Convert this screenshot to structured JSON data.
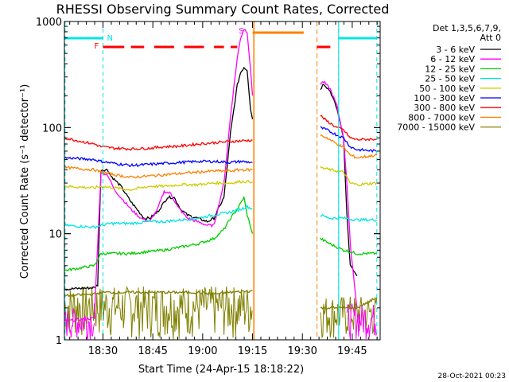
{
  "chart_data": {
    "type": "line",
    "title": "RHESSI Observing Summary Count Rates, Corrected",
    "xlabel": "Start Time (24-Apr-15 18:18:22)",
    "ylabel": "Corrected Count Rate (s⁻¹ detector⁻¹)",
    "ylog": true,
    "ylim": [
      1,
      1000
    ],
    "xlim_minutes": [
      0,
      95
    ],
    "x_ticks": [
      {
        "label": "18:30",
        "min": 11.6
      },
      {
        "label": "18:45",
        "min": 26.6
      },
      {
        "label": "19:00",
        "min": 41.6
      },
      {
        "label": "19:15",
        "min": 56.6
      },
      {
        "label": "19:30",
        "min": 71.6
      },
      {
        "label": "19:45",
        "min": 86.6
      }
    ],
    "y_ticks": [
      {
        "label": "1",
        "value": 1
      },
      {
        "label": "10",
        "value": 10
      },
      {
        "label": "100",
        "value": 100
      },
      {
        "label": "1000",
        "value": 1000
      }
    ],
    "legend_header": [
      "Det 1,3,5,6,7,9,",
      "Att 0"
    ],
    "legend_placement": "right",
    "footer_timestamp": "28-Oct-2021 00:23",
    "gap_minutes": [
      57,
      76
    ],
    "series": [
      {
        "name": "3 - 6 keV",
        "color": "#000000",
        "segments": [
          [
            [
              0,
              3
            ],
            [
              9,
              3.1
            ],
            [
              10,
              3.3
            ],
            [
              11,
              40
            ],
            [
              13,
              40
            ],
            [
              14,
              35
            ],
            [
              17,
              28
            ],
            [
              20,
              20
            ],
            [
              24,
              14
            ],
            [
              25.7,
              14
            ],
            [
              28,
              16
            ],
            [
              31,
              22
            ],
            [
              33,
              22
            ],
            [
              35,
              17
            ],
            [
              37,
              15
            ],
            [
              40,
              14
            ],
            [
              43,
              13
            ],
            [
              45,
              14
            ],
            [
              48,
              22
            ],
            [
              50,
              90
            ],
            [
              52,
              250
            ],
            [
              53,
              330
            ],
            [
              54,
              370
            ],
            [
              55,
              350
            ],
            [
              56,
              150
            ],
            [
              56.6,
              120
            ]
          ],
          [
            [
              77,
              230
            ],
            [
              78,
              260
            ],
            [
              80,
              220
            ],
            [
              82,
              150
            ],
            [
              84,
              80
            ],
            [
              85,
              15
            ],
            [
              86,
              5
            ],
            [
              88,
              4
            ]
          ]
        ]
      },
      {
        "name": "6 - 12 keV",
        "color": "#ff00ff",
        "segments": [
          [
            [
              0,
              1.5
            ],
            [
              9,
              1.6
            ],
            [
              10,
              8
            ],
            [
              11,
              38
            ],
            [
              13,
              36
            ],
            [
              15,
              26
            ],
            [
              17,
              22
            ],
            [
              20,
              17
            ],
            [
              23,
              14
            ],
            [
              25.7,
              13
            ],
            [
              28,
              17
            ],
            [
              30,
              25
            ],
            [
              32,
              24
            ],
            [
              34,
              18
            ],
            [
              37,
              14
            ],
            [
              40,
              13
            ],
            [
              43,
              12
            ],
            [
              45,
              12
            ],
            [
              48,
              30
            ],
            [
              50,
              130
            ],
            [
              52,
              450
            ],
            [
              53,
              700
            ],
            [
              54,
              850
            ],
            [
              55,
              800
            ],
            [
              56,
              350
            ],
            [
              56.6,
              200
            ]
          ],
          [
            [
              77,
              260
            ],
            [
              78,
              270
            ],
            [
              80,
              230
            ],
            [
              82,
              160
            ],
            [
              84,
              80
            ],
            [
              85,
              30
            ],
            [
              86,
              8
            ],
            [
              88,
              2
            ]
          ]
        ]
      },
      {
        "name": "12 - 25 keV",
        "color": "#00cc00",
        "segments": [
          [
            [
              0,
              4.5
            ],
            [
              9,
              5
            ],
            [
              11,
              6.5
            ],
            [
              14,
              6.5
            ],
            [
              20,
              6.5
            ],
            [
              25.7,
              6.8
            ],
            [
              30,
              7
            ],
            [
              40,
              8
            ],
            [
              45,
              9
            ],
            [
              48,
              11
            ],
            [
              50,
              14
            ],
            [
              52,
              17
            ],
            [
              54,
              22
            ],
            [
              55,
              15
            ],
            [
              56.6,
              10
            ]
          ],
          [
            [
              77,
              9
            ],
            [
              80,
              8
            ],
            [
              84,
              7
            ],
            [
              88,
              6.5
            ],
            [
              94,
              6.5
            ]
          ]
        ]
      },
      {
        "name": "25 - 50 keV",
        "color": "#00e5e5",
        "segments": [
          [
            [
              0,
              12
            ],
            [
              9,
              11.5
            ],
            [
              11,
              12
            ],
            [
              14,
              12.5
            ],
            [
              20,
              12.5
            ],
            [
              25.7,
              13
            ],
            [
              30,
              13
            ],
            [
              40,
              14
            ],
            [
              45,
              15
            ],
            [
              50,
              16
            ],
            [
              53,
              17
            ],
            [
              55,
              18
            ],
            [
              56.6,
              17
            ]
          ],
          [
            [
              77,
              15
            ],
            [
              80,
              14
            ],
            [
              84,
              14
            ],
            [
              88,
              13.5
            ],
            [
              94,
              13.5
            ]
          ]
        ]
      },
      {
        "name": "50 - 100 keV",
        "color": "#cccc00",
        "segments": [
          [
            [
              0,
              28
            ],
            [
              9,
              27
            ],
            [
              11,
              28
            ],
            [
              15,
              27
            ],
            [
              20,
              26
            ],
            [
              25.7,
              28
            ],
            [
              30,
              28
            ],
            [
              35,
              29
            ],
            [
              40,
              29
            ],
            [
              45,
              30
            ],
            [
              50,
              30
            ],
            [
              53,
              31
            ],
            [
              56.6,
              31
            ]
          ],
          [
            [
              77,
              42
            ],
            [
              80,
              40
            ],
            [
              84,
              38
            ],
            [
              86,
              30
            ],
            [
              88,
              29
            ],
            [
              94,
              30
            ]
          ]
        ]
      },
      {
        "name": "100 - 300 keV",
        "color": "#0000ff",
        "segments": [
          [
            [
              0,
              52
            ],
            [
              9,
              50
            ],
            [
              11,
              48
            ],
            [
              15,
              46
            ],
            [
              20,
              44
            ],
            [
              25.7,
              45
            ],
            [
              30,
              46
            ],
            [
              35,
              47
            ],
            [
              40,
              48
            ],
            [
              45,
              48
            ],
            [
              50,
              47
            ],
            [
              53,
              48
            ],
            [
              56.6,
              47
            ]
          ],
          [
            [
              77,
              100
            ],
            [
              79,
              95
            ],
            [
              82,
              85
            ],
            [
              84,
              80
            ],
            [
              86,
              66
            ],
            [
              88,
              62
            ],
            [
              94,
              60
            ]
          ]
        ]
      },
      {
        "name": "300 - 800 keV",
        "color": "#ff0000",
        "segments": [
          [
            [
              0,
              80
            ],
            [
              7,
              72
            ],
            [
              9,
              70
            ],
            [
              11,
              66
            ],
            [
              15,
              64
            ],
            [
              20,
              63
            ],
            [
              25.7,
              64
            ],
            [
              30,
              66
            ],
            [
              35,
              67
            ],
            [
              40,
              70
            ],
            [
              45,
              72
            ],
            [
              50,
              74
            ],
            [
              53,
              75
            ],
            [
              56.6,
              76
            ]
          ],
          [
            [
              77,
              130
            ],
            [
              79,
              115
            ],
            [
              82,
              100
            ],
            [
              84,
              95
            ],
            [
              86,
              80
            ],
            [
              88,
              77
            ],
            [
              94,
              78
            ]
          ]
        ]
      },
      {
        "name": "800 - 7000 keV",
        "color": "#ff8000",
        "segments": [
          [
            [
              0,
              42
            ],
            [
              9,
              40
            ],
            [
              11,
              38
            ],
            [
              15,
              36
            ],
            [
              20,
              34
            ],
            [
              25.7,
              35
            ],
            [
              30,
              36
            ],
            [
              35,
              37
            ],
            [
              40,
              38
            ],
            [
              45,
              39
            ],
            [
              50,
              39
            ],
            [
              53,
              40
            ],
            [
              56.6,
              40
            ]
          ],
          [
            [
              77,
              85
            ],
            [
              79,
              80
            ],
            [
              82,
              70
            ],
            [
              84,
              65
            ],
            [
              86,
              55
            ],
            [
              88,
              52
            ],
            [
              94,
              55
            ]
          ]
        ]
      },
      {
        "name": "7000 - 15000 keV",
        "color": "#808000",
        "segments": [
          [
            [
              0,
              2.6
            ],
            [
              9,
              2.7
            ],
            [
              11,
              2.8
            ],
            [
              14,
              2.8
            ],
            [
              20,
              2.8
            ],
            [
              25.7,
              2.8
            ],
            [
              30,
              2.8
            ],
            [
              40,
              2.8
            ],
            [
              45,
              2.7
            ],
            [
              50,
              2.8
            ],
            [
              56.6,
              2.9
            ]
          ],
          [
            [
              77,
              2
            ],
            [
              80,
              2
            ],
            [
              84,
              2
            ],
            [
              88,
              2
            ],
            [
              94,
              2.5
            ]
          ]
        ]
      }
    ],
    "noise_bands": [
      {
        "color": "#808000",
        "ranges": [
          [
            0,
            56.6,
            1,
            3.2
          ],
          [
            77,
            94,
            1,
            2.6
          ]
        ]
      },
      {
        "color": "#ff00ff",
        "ranges": [
          [
            0,
            9,
            1,
            2
          ],
          [
            85,
            94,
            1,
            2.2
          ]
        ]
      }
    ],
    "flags": [
      {
        "label": "N",
        "color": "#00e5e5",
        "x_min": [
          0,
          11.6
        ],
        "x_min2": [
          82.5,
          94
        ]
      },
      {
        "label": "F",
        "color": "#ff0000",
        "segments": [
          [
            11.6,
            18
          ],
          [
            20,
            24
          ],
          [
            27,
            33
          ],
          [
            36,
            42
          ],
          [
            45,
            48
          ],
          [
            50,
            52
          ],
          [
            76,
            80
          ]
        ]
      },
      {
        "label": "S",
        "color": "#ff00ff",
        "x": [
          52,
          54
        ]
      },
      {
        "label": "",
        "color": "#ff8000",
        "segments": [
          [
            56.6,
            72
          ]
        ]
      }
    ],
    "grid": false
  }
}
